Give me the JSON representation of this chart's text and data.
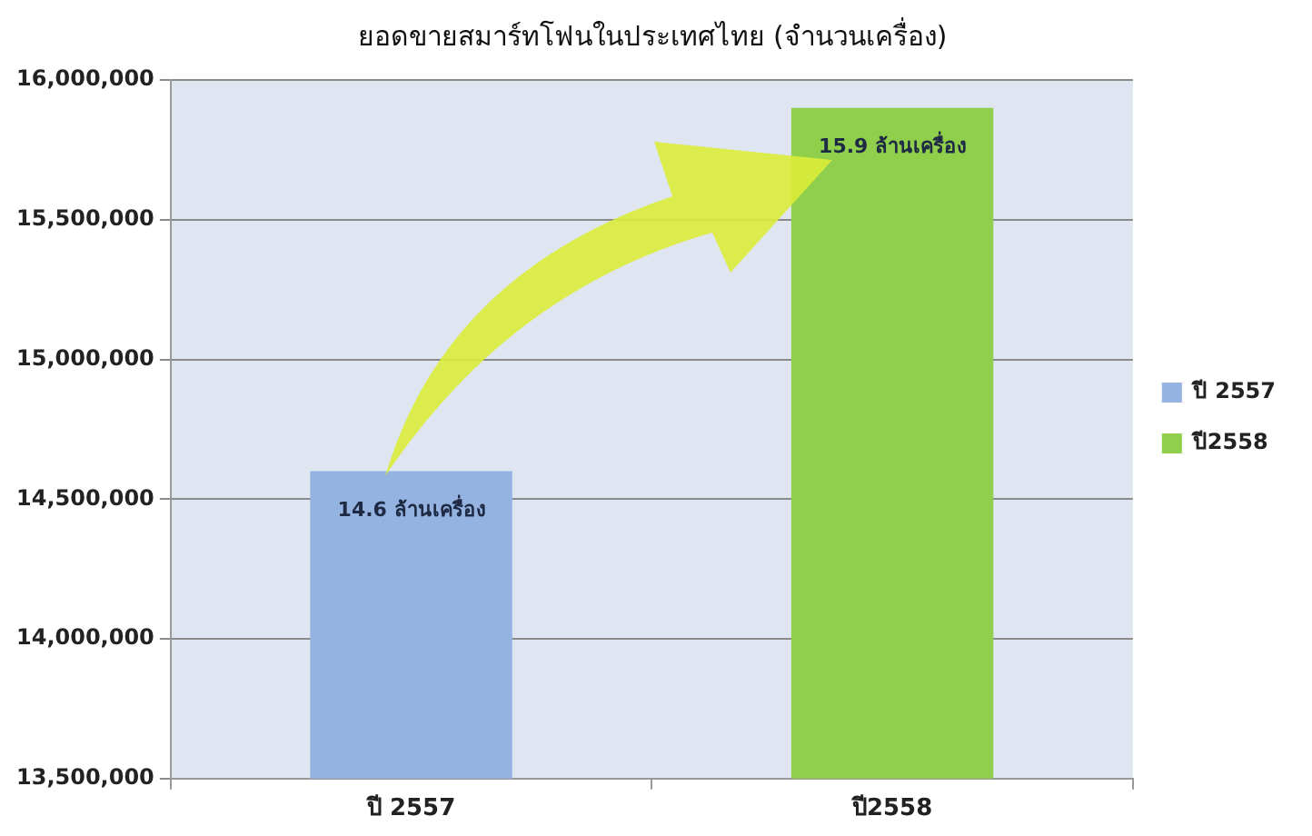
{
  "chart_data": {
    "type": "bar",
    "title": "ยอดขายสมาร์ทโฟนในประเทศไทย (จำนวนเครื่อง)",
    "categories": [
      "ปี 2557",
      "ปี2558"
    ],
    "series": [
      {
        "name": "ปี 2557",
        "color": "#95b3e0",
        "values": [
          14600000,
          null
        ]
      },
      {
        "name": "ปี2558",
        "color": "#8fcf4c",
        "values": [
          null,
          15900000
        ]
      }
    ],
    "annotations": [
      {
        "text": "14.6 ล้านเครื่อง",
        "x": "ปี 2557",
        "y": 14600000
      },
      {
        "text": "15.9 ล้านเครื่อง",
        "x": "ปี2558",
        "y": 15900000
      }
    ],
    "ylim": [
      13500000,
      16000000
    ],
    "yticks": [
      {
        "value": 13500000,
        "label": "13,500,000"
      },
      {
        "value": 14000000,
        "label": "14,000,000"
      },
      {
        "value": 14500000,
        "label": "14,500,000"
      },
      {
        "value": 15000000,
        "label": "15,000,000"
      },
      {
        "value": 15500000,
        "label": "15,500,000"
      },
      {
        "value": 16000000,
        "label": "16,000,000"
      }
    ],
    "grid": "y",
    "legend": "right"
  }
}
